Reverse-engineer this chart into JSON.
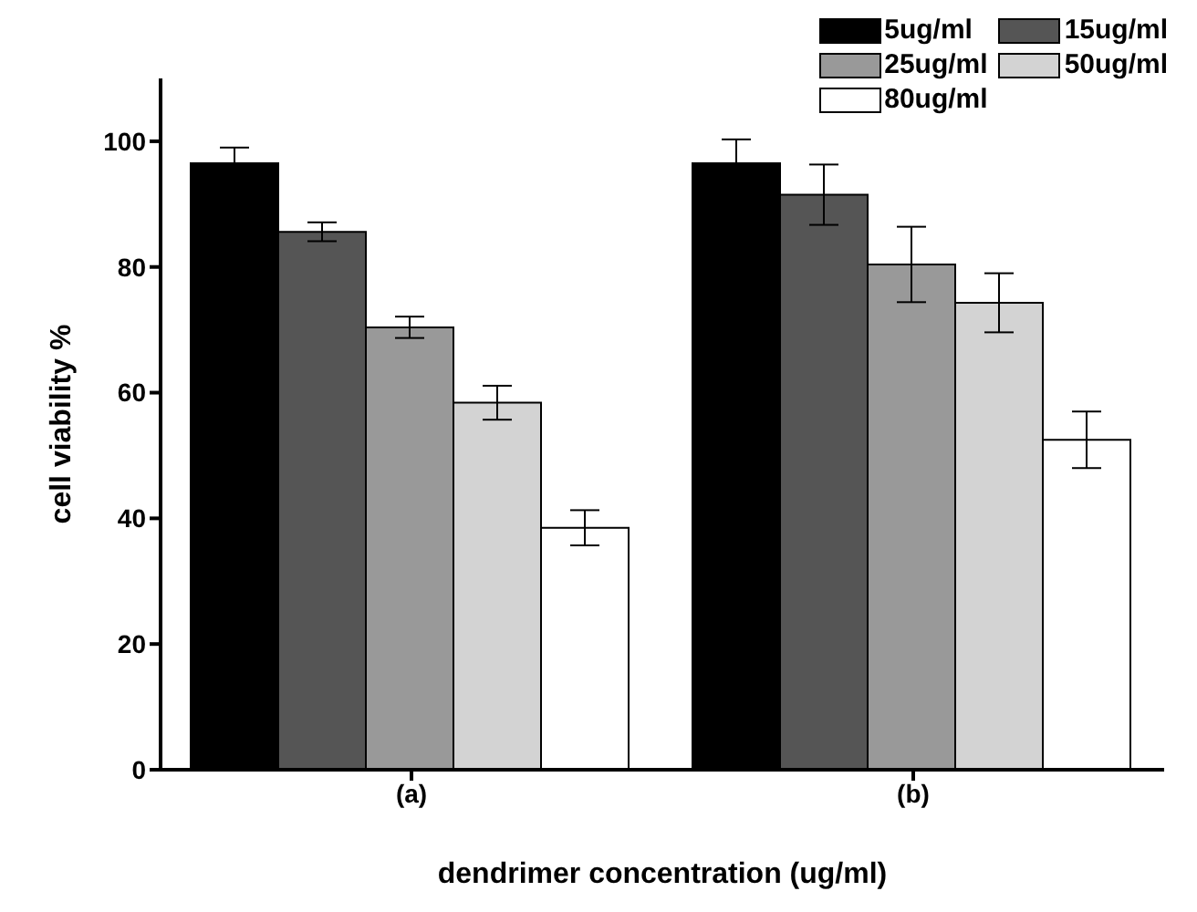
{
  "chart_data": {
    "type": "bar",
    "xlabel": "dendrimer concentration (ug/ml)",
    "ylabel": "cell viability %",
    "categories": [
      "(a)",
      "(b)"
    ],
    "series": [
      {
        "name": "5ug/ml",
        "color": "#000000",
        "values": [
          96.5,
          96.5
        ],
        "errors": [
          2.5,
          3.8
        ]
      },
      {
        "name": "15ug/ml",
        "color": "#555555",
        "values": [
          85.6,
          91.5
        ],
        "errors": [
          1.5,
          4.8
        ]
      },
      {
        "name": "25ug/ml",
        "color": "#999999",
        "values": [
          70.4,
          80.4
        ],
        "errors": [
          1.7,
          6
        ]
      },
      {
        "name": "50ug/ml",
        "color": "#d3d3d3",
        "values": [
          58.4,
          74.3
        ],
        "errors": [
          2.7,
          4.7
        ]
      },
      {
        "name": "80ug/ml",
        "color": "#ffffff",
        "values": [
          38.5,
          52.5
        ],
        "errors": [
          2.8,
          4.5
        ]
      }
    ],
    "ylim": [
      0,
      110
    ],
    "yticks": [
      0,
      20,
      40,
      60,
      80,
      100
    ],
    "grid": false,
    "legend": "top right"
  }
}
